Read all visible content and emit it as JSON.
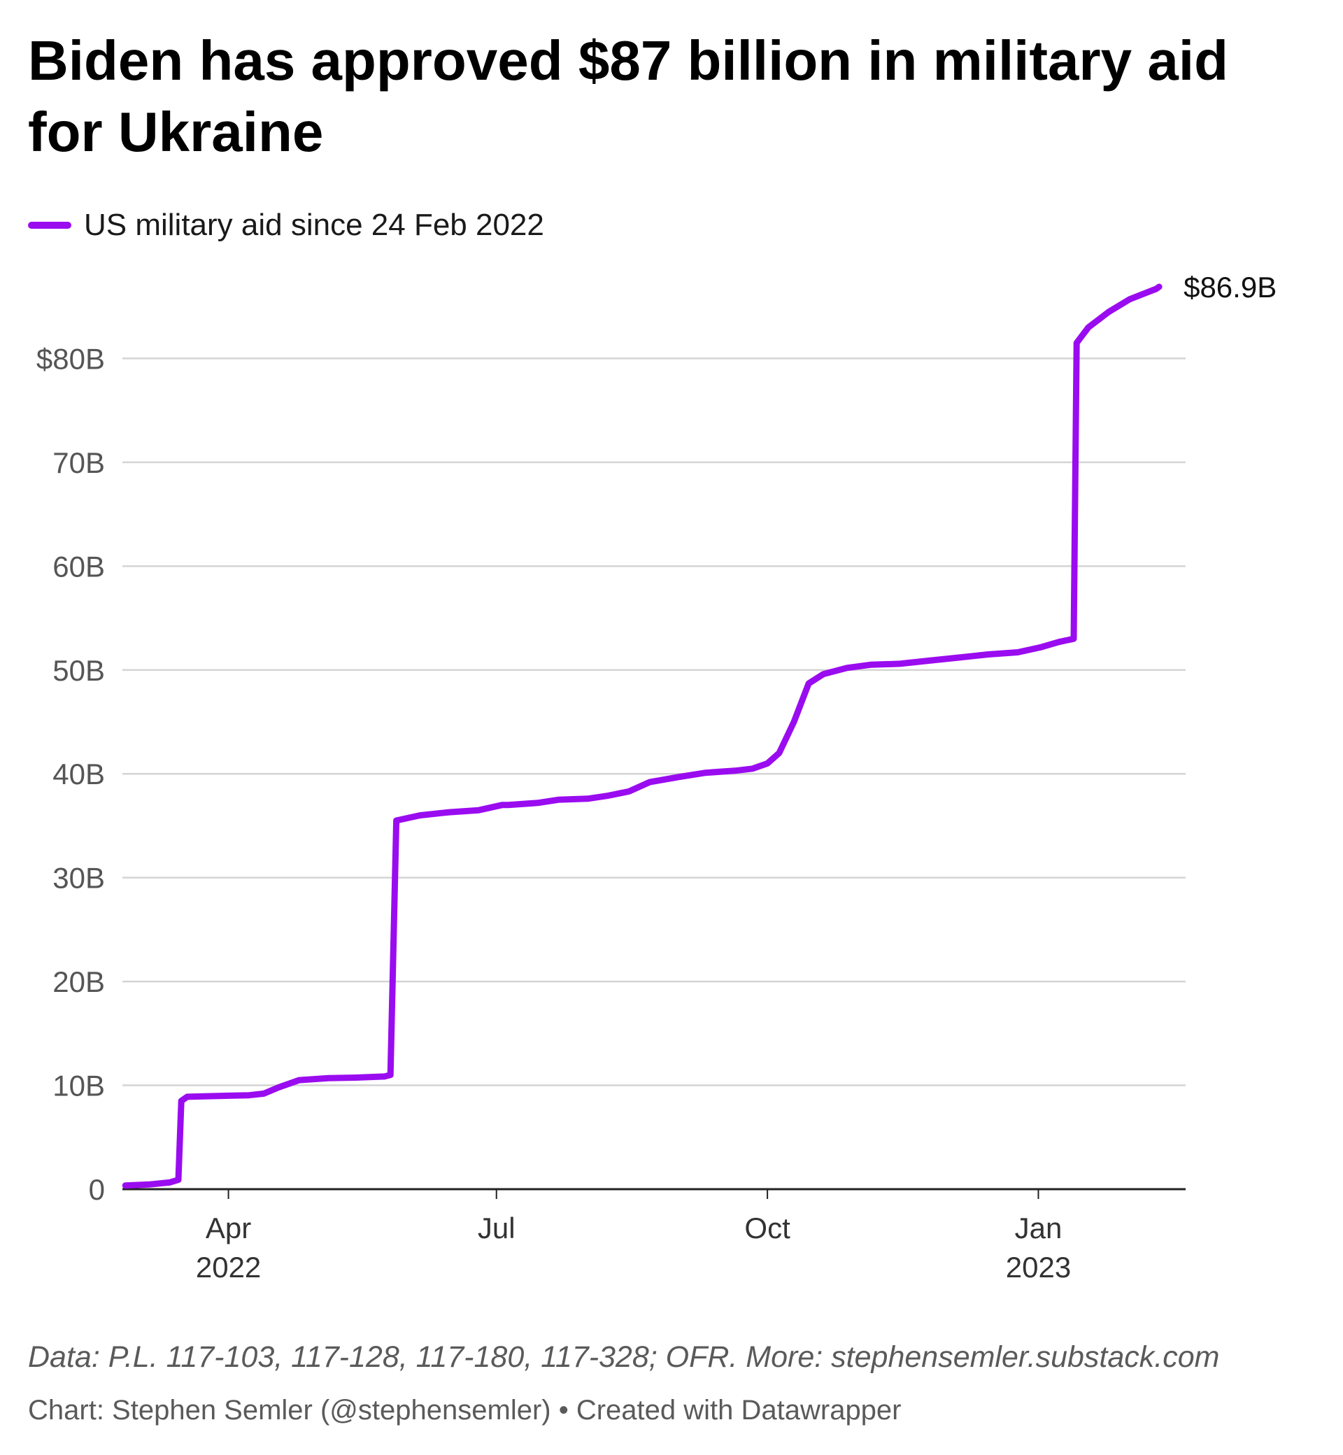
{
  "chart_data": {
    "type": "line",
    "title": "Biden has approved $87 billion in military aid for Ukraine",
    "series": [
      {
        "name": "US military aid since 24 Feb 2022",
        "color": "#9a0cf0",
        "end_label": "$86.9B",
        "points": [
          [
            "2022-02-25",
            0.35
          ],
          [
            "2022-03-05",
            0.45
          ],
          [
            "2022-03-12",
            0.65
          ],
          [
            "2022-03-15",
            0.9
          ],
          [
            "2022-03-16",
            8.5
          ],
          [
            "2022-03-18",
            8.9
          ],
          [
            "2022-03-25",
            8.95
          ],
          [
            "2022-04-01",
            9.0
          ],
          [
            "2022-04-08",
            9.05
          ],
          [
            "2022-04-13",
            9.2
          ],
          [
            "2022-04-18",
            9.8
          ],
          [
            "2022-04-25",
            10.5
          ],
          [
            "2022-05-05",
            10.7
          ],
          [
            "2022-05-15",
            10.75
          ],
          [
            "2022-05-24",
            10.85
          ],
          [
            "2022-05-26",
            11.0
          ],
          [
            "2022-05-28",
            35.5
          ],
          [
            "2022-06-05",
            36.0
          ],
          [
            "2022-06-15",
            36.3
          ],
          [
            "2022-06-25",
            36.5
          ],
          [
            "2022-07-03",
            37.0
          ],
          [
            "2022-07-05",
            37.0
          ],
          [
            "2022-07-15",
            37.2
          ],
          [
            "2022-07-22",
            37.5
          ],
          [
            "2022-08-01",
            37.6
          ],
          [
            "2022-08-08",
            37.9
          ],
          [
            "2022-08-15",
            38.3
          ],
          [
            "2022-08-22",
            39.2
          ],
          [
            "2022-09-01",
            39.7
          ],
          [
            "2022-09-10",
            40.1
          ],
          [
            "2022-09-20",
            40.3
          ],
          [
            "2022-09-26",
            40.5
          ],
          [
            "2022-10-01",
            41.0
          ],
          [
            "2022-10-05",
            42.0
          ],
          [
            "2022-10-10",
            45.0
          ],
          [
            "2022-10-15",
            48.7
          ],
          [
            "2022-10-20",
            49.6
          ],
          [
            "2022-10-28",
            50.2
          ],
          [
            "2022-11-05",
            50.5
          ],
          [
            "2022-11-15",
            50.6
          ],
          [
            "2022-11-25",
            50.9
          ],
          [
            "2022-12-05",
            51.2
          ],
          [
            "2022-12-15",
            51.5
          ],
          [
            "2022-12-25",
            51.7
          ],
          [
            "2023-01-02",
            52.2
          ],
          [
            "2023-01-08",
            52.7
          ],
          [
            "2023-01-13",
            53.0
          ],
          [
            "2023-01-14",
            81.5
          ],
          [
            "2023-01-18",
            83.0
          ],
          [
            "2023-01-25",
            84.5
          ],
          [
            "2023-02-01",
            85.7
          ],
          [
            "2023-02-10",
            86.7
          ],
          [
            "2023-02-11",
            86.9
          ]
        ]
      }
    ],
    "y_axis": {
      "range": [
        0,
        86.9
      ],
      "ticks": [
        {
          "value": 0,
          "label": "0"
        },
        {
          "value": 10,
          "label": "10B"
        },
        {
          "value": 20,
          "label": "20B"
        },
        {
          "value": 30,
          "label": "30B"
        },
        {
          "value": 40,
          "label": "40B"
        },
        {
          "value": 50,
          "label": "50B"
        },
        {
          "value": 60,
          "label": "60B"
        },
        {
          "value": 70,
          "label": "70B"
        },
        {
          "value": 80,
          "label": "$80B"
        }
      ]
    },
    "x_axis": {
      "range": [
        "2022-02-24",
        "2023-02-20"
      ],
      "ticks": [
        {
          "date": "2022-04-01",
          "label": "Apr",
          "sublabel": "2022"
        },
        {
          "date": "2022-07-01",
          "label": "Jul",
          "sublabel": ""
        },
        {
          "date": "2022-10-01",
          "label": "Oct",
          "sublabel": ""
        },
        {
          "date": "2023-01-01",
          "label": "Jan",
          "sublabel": "2023"
        }
      ]
    },
    "grid": true,
    "legend_position": "top-left"
  },
  "footer": {
    "source": "Data: P.L. 117-103, 117-128, 117-180, 117-328; OFR. More: stephensemler.substack.com",
    "credit": "Chart: Stephen Semler (@stephensemler) • Created with Datawrapper"
  }
}
